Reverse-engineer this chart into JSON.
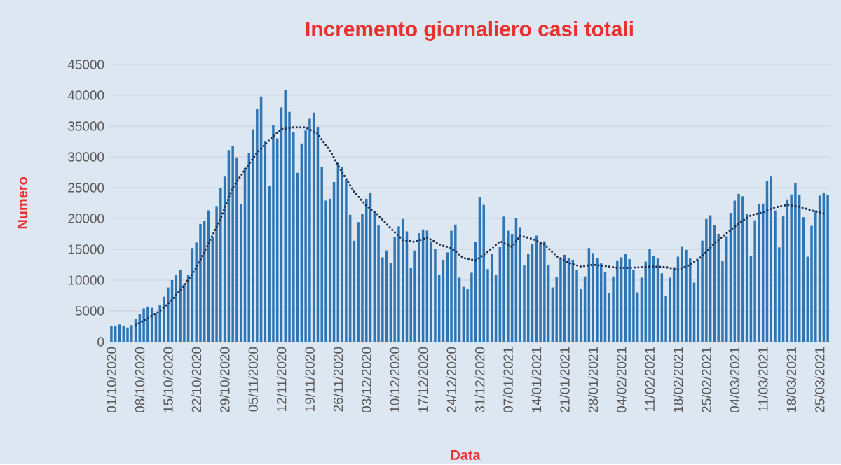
{
  "chart_data": {
    "type": "bar",
    "title": "Incremento giornaliero casi totali",
    "xlabel": "Data",
    "ylabel": "Numero",
    "x": [
      "2020-10-01",
      "2020-10-02",
      "2020-10-03",
      "2020-10-04",
      "2020-10-05",
      "2020-10-06",
      "2020-10-07",
      "2020-10-08",
      "2020-10-09",
      "2020-10-10",
      "2020-10-11",
      "2020-10-12",
      "2020-10-13",
      "2020-10-14",
      "2020-10-15",
      "2020-10-16",
      "2020-10-17",
      "2020-10-18",
      "2020-10-19",
      "2020-10-20",
      "2020-10-21",
      "2020-10-22",
      "2020-10-23",
      "2020-10-24",
      "2020-10-25",
      "2020-10-26",
      "2020-10-27",
      "2020-10-28",
      "2020-10-29",
      "2020-10-30",
      "2020-10-31",
      "2020-11-01",
      "2020-11-02",
      "2020-11-03",
      "2020-11-04",
      "2020-11-05",
      "2020-11-06",
      "2020-11-07",
      "2020-11-08",
      "2020-11-09",
      "2020-11-10",
      "2020-11-11",
      "2020-11-12",
      "2020-11-13",
      "2020-11-14",
      "2020-11-15",
      "2020-11-16",
      "2020-11-17",
      "2020-11-18",
      "2020-11-19",
      "2020-11-20",
      "2020-11-21",
      "2020-11-22",
      "2020-11-23",
      "2020-11-24",
      "2020-11-25",
      "2020-11-26",
      "2020-11-27",
      "2020-11-28",
      "2020-11-29",
      "2020-11-30",
      "2020-12-01",
      "2020-12-02",
      "2020-12-03",
      "2020-12-04",
      "2020-12-05",
      "2020-12-06",
      "2020-12-07",
      "2020-12-08",
      "2020-12-09",
      "2020-12-10",
      "2020-12-11",
      "2020-12-12",
      "2020-12-13",
      "2020-12-14",
      "2020-12-15",
      "2020-12-16",
      "2020-12-17",
      "2020-12-18",
      "2020-12-19",
      "2020-12-20",
      "2020-12-21",
      "2020-12-22",
      "2020-12-23",
      "2020-12-24",
      "2020-12-25",
      "2020-12-26",
      "2020-12-27",
      "2020-12-28",
      "2020-12-29",
      "2020-12-30",
      "2020-12-31",
      "2021-01-01",
      "2021-01-02",
      "2021-01-03",
      "2021-01-04",
      "2021-01-05",
      "2021-01-06",
      "2021-01-07",
      "2021-01-08",
      "2021-01-09",
      "2021-01-10",
      "2021-01-11",
      "2021-01-12",
      "2021-01-13",
      "2021-01-14",
      "2021-01-15",
      "2021-01-16",
      "2021-01-17",
      "2021-01-18",
      "2021-01-19",
      "2021-01-20",
      "2021-01-21",
      "2021-01-22",
      "2021-01-23",
      "2021-01-24",
      "2021-01-25",
      "2021-01-26",
      "2021-01-27",
      "2021-01-28",
      "2021-01-29",
      "2021-01-30",
      "2021-01-31",
      "2021-02-01",
      "2021-02-02",
      "2021-02-03",
      "2021-02-04",
      "2021-02-05",
      "2021-02-06",
      "2021-02-07",
      "2021-02-08",
      "2021-02-09",
      "2021-02-10",
      "2021-02-11",
      "2021-02-12",
      "2021-02-13",
      "2021-02-14",
      "2021-02-15",
      "2021-02-16",
      "2021-02-17",
      "2021-02-18",
      "2021-02-19",
      "2021-02-20",
      "2021-02-21",
      "2021-02-22",
      "2021-02-23",
      "2021-02-24",
      "2021-02-25",
      "2021-02-26",
      "2021-02-27",
      "2021-02-28",
      "2021-03-01",
      "2021-03-02",
      "2021-03-03",
      "2021-03-04",
      "2021-03-05",
      "2021-03-06",
      "2021-03-07",
      "2021-03-08",
      "2021-03-09",
      "2021-03-10",
      "2021-03-11",
      "2021-03-12",
      "2021-03-13",
      "2021-03-14",
      "2021-03-15",
      "2021-03-16",
      "2021-03-17",
      "2021-03-18",
      "2021-03-19",
      "2021-03-20",
      "2021-03-21",
      "2021-03-22",
      "2021-03-23",
      "2021-03-24",
      "2021-03-25",
      "2021-03-26",
      "2021-03-27"
    ],
    "series": [
      {
        "color": "#2e75b6",
        "values": [
          2500,
          2500,
          2800,
          2600,
          2300,
          2700,
          3700,
          4500,
          5400,
          5700,
          5500,
          4600,
          5900,
          7300,
          8800,
          10000,
          10900,
          11700,
          9300,
          10900,
          15200,
          16100,
          19100,
          19600,
          21300,
          17000,
          22000,
          25000,
          26800,
          31100,
          31800,
          29900,
          22300,
          28200,
          30600,
          34500,
          37800,
          39800,
          32600,
          25300,
          35100,
          33000,
          38000,
          40900,
          37300,
          34000,
          27400,
          32200,
          34300,
          36200,
          37200,
          34800,
          28300,
          22900,
          23200,
          25900,
          29000,
          28400,
          26300,
          20600,
          16400,
          19400,
          20700,
          23200,
          24100,
          21100,
          18900,
          13700,
          14800,
          12800,
          17000,
          18700,
          19900,
          17900,
          12000,
          14800,
          17600,
          18200,
          18000,
          16300,
          15100,
          10900,
          13300,
          14500,
          18000,
          19000,
          10400,
          8900,
          8600,
          11200,
          16200,
          23500,
          22200,
          11800,
          14200,
          10800,
          15400,
          20300,
          18000,
          17500,
          20000,
          18600,
          12500,
          14200,
          15800,
          17200,
          16100,
          16300,
          12500,
          8800,
          10500,
          13600,
          14100,
          13600,
          13300,
          11600,
          8600,
          10600,
          15200,
          14400,
          13600,
          12700,
          11300,
          7900,
          10600,
          13200,
          13700,
          14200,
          13400,
          11600,
          8000,
          10400,
          13000,
          15100,
          13900,
          13500,
          11100,
          7400,
          10400,
          12100,
          13800,
          15500,
          14900,
          13500,
          9600,
          13300,
          16400,
          19900,
          20500,
          18900,
          17500,
          13100,
          17100,
          20900,
          22900,
          24000,
          23600,
          20800,
          13900,
          19700,
          22400,
          22400,
          26100,
          26800,
          21300,
          15300,
          20400,
          23100,
          23900,
          25700,
          23800,
          20200,
          13800,
          18800,
          21300,
          23700,
          24100,
          23800
        ]
      },
      {
        "type": "line",
        "color": "#1f2f4f",
        "line_style": "dotted",
        "x": [
          "2020-10-07",
          "2020-10-10",
          "2020-10-13",
          "2020-10-16",
          "2020-10-19",
          "2020-10-22",
          "2020-10-25",
          "2020-10-28",
          "2020-10-31",
          "2020-11-03",
          "2020-11-06",
          "2020-11-09",
          "2020-11-12",
          "2020-11-15",
          "2020-11-18",
          "2020-11-21",
          "2020-11-24",
          "2020-11-27",
          "2020-11-30",
          "2020-12-03",
          "2020-12-06",
          "2020-12-09",
          "2020-12-12",
          "2020-12-15",
          "2020-12-18",
          "2020-12-21",
          "2020-12-24",
          "2020-12-27",
          "2020-12-30",
          "2021-01-02",
          "2021-01-05",
          "2021-01-08",
          "2021-01-10",
          "2021-01-13",
          "2021-01-16",
          "2021-01-19",
          "2021-01-22",
          "2021-01-25",
          "2021-01-28",
          "2021-01-31",
          "2021-02-03",
          "2021-02-06",
          "2021-02-09",
          "2021-02-12",
          "2021-02-15",
          "2021-02-18",
          "2021-02-21",
          "2021-02-24",
          "2021-02-27",
          "2021-03-02",
          "2021-03-05",
          "2021-03-08",
          "2021-03-11",
          "2021-03-14",
          "2021-03-17",
          "2021-03-20",
          "2021-03-23",
          "2021-03-26"
        ],
        "values": [
          2700,
          3800,
          5000,
          6800,
          9100,
          12000,
          15900,
          20000,
          25000,
          27900,
          30700,
          32700,
          34500,
          34800,
          34800,
          33700,
          31000,
          27500,
          24300,
          22100,
          20500,
          18400,
          16500,
          16200,
          16900,
          15800,
          15200,
          13600,
          13200,
          14600,
          16300,
          15400,
          17200,
          16700,
          15800,
          13900,
          12800,
          12200,
          12500,
          12300,
          12000,
          12000,
          12100,
          12200,
          12100,
          11700,
          12500,
          13900,
          16000,
          17600,
          19200,
          20500,
          21000,
          21800,
          22200,
          21900,
          21300,
          20800
        ]
      }
    ],
    "xlim": [
      "2020-09-30T12:00",
      "2021-03-27T12:00"
    ],
    "xticks": [
      {
        "value": "2020-10-01",
        "label": "01/10/2020"
      },
      {
        "value": "2020-10-08",
        "label": "08/10/2020"
      },
      {
        "value": "2020-10-15",
        "label": "15/10/2020"
      },
      {
        "value": "2020-10-22",
        "label": "22/10/2020"
      },
      {
        "value": "2020-10-29",
        "label": "29/10/2020"
      },
      {
        "value": "2020-11-05",
        "label": "05/11/2020"
      },
      {
        "value": "2020-11-12",
        "label": "12/11/2020"
      },
      {
        "value": "2020-11-19",
        "label": "19/11/2020"
      },
      {
        "value": "2020-11-26",
        "label": "26/11/2020"
      },
      {
        "value": "2020-12-03",
        "label": "03/12/2020"
      },
      {
        "value": "2020-12-10",
        "label": "10/12/2020"
      },
      {
        "value": "2020-12-17",
        "label": "17/12/2020"
      },
      {
        "value": "2020-12-24",
        "label": "24/12/2020"
      },
      {
        "value": "2020-12-31",
        "label": "31/12/2020"
      },
      {
        "value": "2021-01-07",
        "label": "07/01/2021"
      },
      {
        "value": "2021-01-14",
        "label": "14/01/2021"
      },
      {
        "value": "2021-01-21",
        "label": "21/01/2021"
      },
      {
        "value": "2021-01-28",
        "label": "28/01/2021"
      },
      {
        "value": "2021-02-04",
        "label": "04/02/2021"
      },
      {
        "value": "2021-02-11",
        "label": "11/02/2021"
      },
      {
        "value": "2021-02-18",
        "label": "18/02/2021"
      },
      {
        "value": "2021-02-25",
        "label": "25/02/2021"
      },
      {
        "value": "2021-03-04",
        "label": "04/03/2021"
      },
      {
        "value": "2021-03-11",
        "label": "11/03/2021"
      },
      {
        "value": "2021-03-18",
        "label": "18/03/2021"
      },
      {
        "value": "2021-03-25",
        "label": "25/03/2021"
      }
    ],
    "ylim": [
      0,
      45000
    ],
    "yticks": [
      0,
      5000,
      10000,
      15000,
      20000,
      25000,
      30000,
      35000,
      40000,
      45000
    ],
    "grid": "y"
  }
}
